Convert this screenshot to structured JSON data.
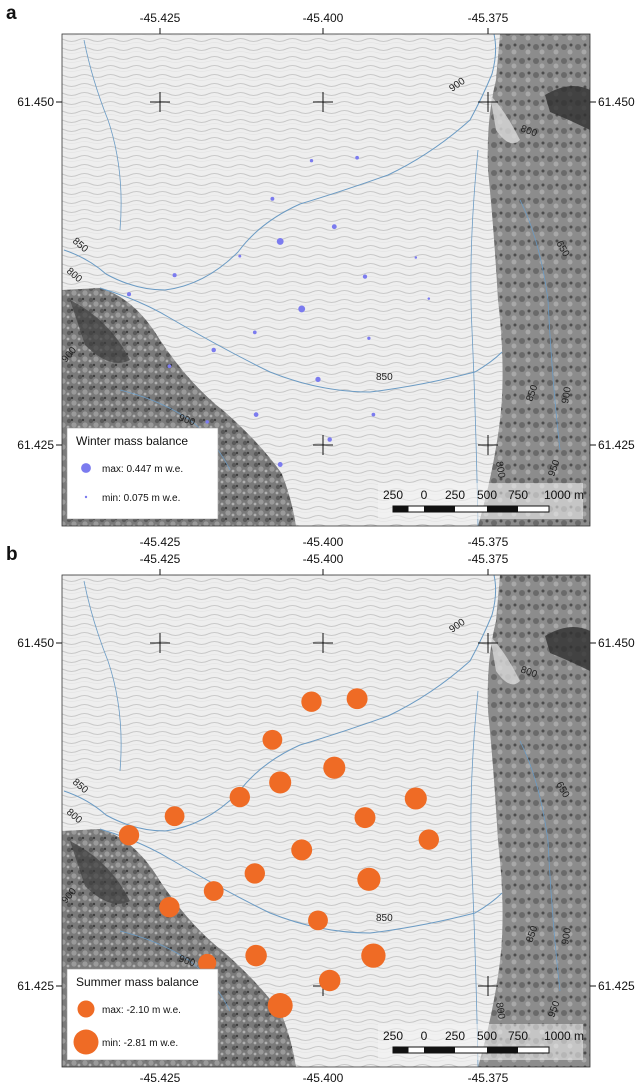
{
  "panels": [
    {
      "label": "a",
      "top_lon_labels": [
        "-45.425",
        "-45.400",
        "-45.375"
      ],
      "bottom_lon_labels": [
        "-45.425",
        "-45.400",
        "-45.375"
      ],
      "lat_labels": [
        "61.450",
        "61.425"
      ],
      "legend": {
        "title": "Winter mass balance",
        "max_label": "max: 0.447 m w.e.",
        "min_label": "min: 0.075 m w.e.",
        "symbol_color": "#7b7bef"
      },
      "scalebar": {
        "labels": [
          "250",
          "0",
          "250",
          "500",
          "750",
          "1000 m"
        ]
      },
      "contour_labels": [
        "900",
        "800",
        "850",
        "650",
        "850",
        "800",
        "900",
        "900",
        "850",
        "900",
        "950",
        "800",
        "850"
      ],
      "chart_data": {
        "type": "scatter",
        "variable": "winter mass balance",
        "unit": "m w.e.",
        "max": 0.447,
        "min": 0.075,
        "points": [
          {
            "lon": -45.3965,
            "lat": 61.4463,
            "value": 0.12
          },
          {
            "lon": -45.3895,
            "lat": 61.4465,
            "value": 0.14
          },
          {
            "lon": -45.4025,
            "lat": 61.4437,
            "value": 0.15
          },
          {
            "lon": -45.4013,
            "lat": 61.4408,
            "value": 0.3
          },
          {
            "lon": -45.393,
            "lat": 61.4418,
            "value": 0.2
          },
          {
            "lon": -45.4075,
            "lat": 61.4398,
            "value": 0.1
          },
          {
            "lon": -45.4175,
            "lat": 61.4385,
            "value": 0.16
          },
          {
            "lon": -45.3883,
            "lat": 61.4384,
            "value": 0.17
          },
          {
            "lon": -45.3805,
            "lat": 61.4397,
            "value": 0.08
          },
          {
            "lon": -45.4245,
            "lat": 61.4372,
            "value": 0.16
          },
          {
            "lon": -45.398,
            "lat": 61.4362,
            "value": 0.3
          },
          {
            "lon": -45.4052,
            "lat": 61.4346,
            "value": 0.14
          },
          {
            "lon": -45.3877,
            "lat": 61.4342,
            "value": 0.12
          },
          {
            "lon": -45.3785,
            "lat": 61.4369,
            "value": 0.08
          },
          {
            "lon": -45.4115,
            "lat": 61.4334,
            "value": 0.18
          },
          {
            "lon": -45.4183,
            "lat": 61.4323,
            "value": 0.14
          },
          {
            "lon": -45.3955,
            "lat": 61.4314,
            "value": 0.22
          },
          {
            "lon": -45.405,
            "lat": 61.429,
            "value": 0.19
          },
          {
            "lon": -45.4125,
            "lat": 61.4285,
            "value": 0.13
          },
          {
            "lon": -45.387,
            "lat": 61.429,
            "value": 0.14
          },
          {
            "lon": -45.3937,
            "lat": 61.4273,
            "value": 0.18
          },
          {
            "lon": -45.4013,
            "lat": 61.4256,
            "value": 0.2
          }
        ]
      }
    },
    {
      "label": "b",
      "top_lon_labels": [
        "-45.425",
        "-45.400",
        "-45.375"
      ],
      "bottom_lon_labels": [
        "-45.425",
        "-45.400",
        "-45.375"
      ],
      "lat_labels": [
        "61.450",
        "61.425"
      ],
      "legend": {
        "title": "Summer mass balance",
        "max_label": "max: -2.10 m w.e.",
        "min_label": "min: -2.81 m w.e.",
        "symbol_color": "#ef6b25"
      },
      "scalebar": {
        "labels": [
          "250",
          "0",
          "250",
          "500",
          "750",
          "1000 m"
        ]
      },
      "contour_labels": [
        "900",
        "800",
        "850",
        "650",
        "850",
        "800",
        "900",
        "900",
        "850",
        "900",
        "950",
        "800",
        "850"
      ],
      "chart_data": {
        "type": "scatter",
        "variable": "summer mass balance",
        "unit": "m w.e.",
        "max": -2.1,
        "min": -2.81,
        "points": [
          {
            "lon": -45.3965,
            "lat": 61.4463,
            "value": -2.4
          },
          {
            "lon": -45.3895,
            "lat": 61.4465,
            "value": -2.45
          },
          {
            "lon": -45.4025,
            "lat": 61.4437,
            "value": -2.35
          },
          {
            "lon": -45.4013,
            "lat": 61.4408,
            "value": -2.55
          },
          {
            "lon": -45.393,
            "lat": 61.4418,
            "value": -2.55
          },
          {
            "lon": -45.4075,
            "lat": 61.4398,
            "value": -2.4
          },
          {
            "lon": -45.4175,
            "lat": 61.4385,
            "value": -2.35
          },
          {
            "lon": -45.3883,
            "lat": 61.4384,
            "value": -2.45
          },
          {
            "lon": -45.3805,
            "lat": 61.4397,
            "value": -2.55
          },
          {
            "lon": -45.4245,
            "lat": 61.4372,
            "value": -2.4
          },
          {
            "lon": -45.398,
            "lat": 61.4362,
            "value": -2.45
          },
          {
            "lon": -45.4052,
            "lat": 61.4346,
            "value": -2.4
          },
          {
            "lon": -45.3877,
            "lat": 61.4342,
            "value": -2.65
          },
          {
            "lon": -45.3785,
            "lat": 61.4369,
            "value": -2.4
          },
          {
            "lon": -45.4115,
            "lat": 61.4334,
            "value": -2.35
          },
          {
            "lon": -45.4183,
            "lat": 61.4323,
            "value": -2.4
          },
          {
            "lon": -45.3955,
            "lat": 61.4314,
            "value": -2.35
          },
          {
            "lon": -45.405,
            "lat": 61.429,
            "value": -2.5
          },
          {
            "lon": -45.4125,
            "lat": 61.4285,
            "value": -2.2
          },
          {
            "lon": -45.387,
            "lat": 61.429,
            "value": -2.75
          },
          {
            "lon": -45.3937,
            "lat": 61.4273,
            "value": -2.5
          },
          {
            "lon": -45.4013,
            "lat": 61.4256,
            "value": -2.81
          }
        ]
      }
    }
  ]
}
